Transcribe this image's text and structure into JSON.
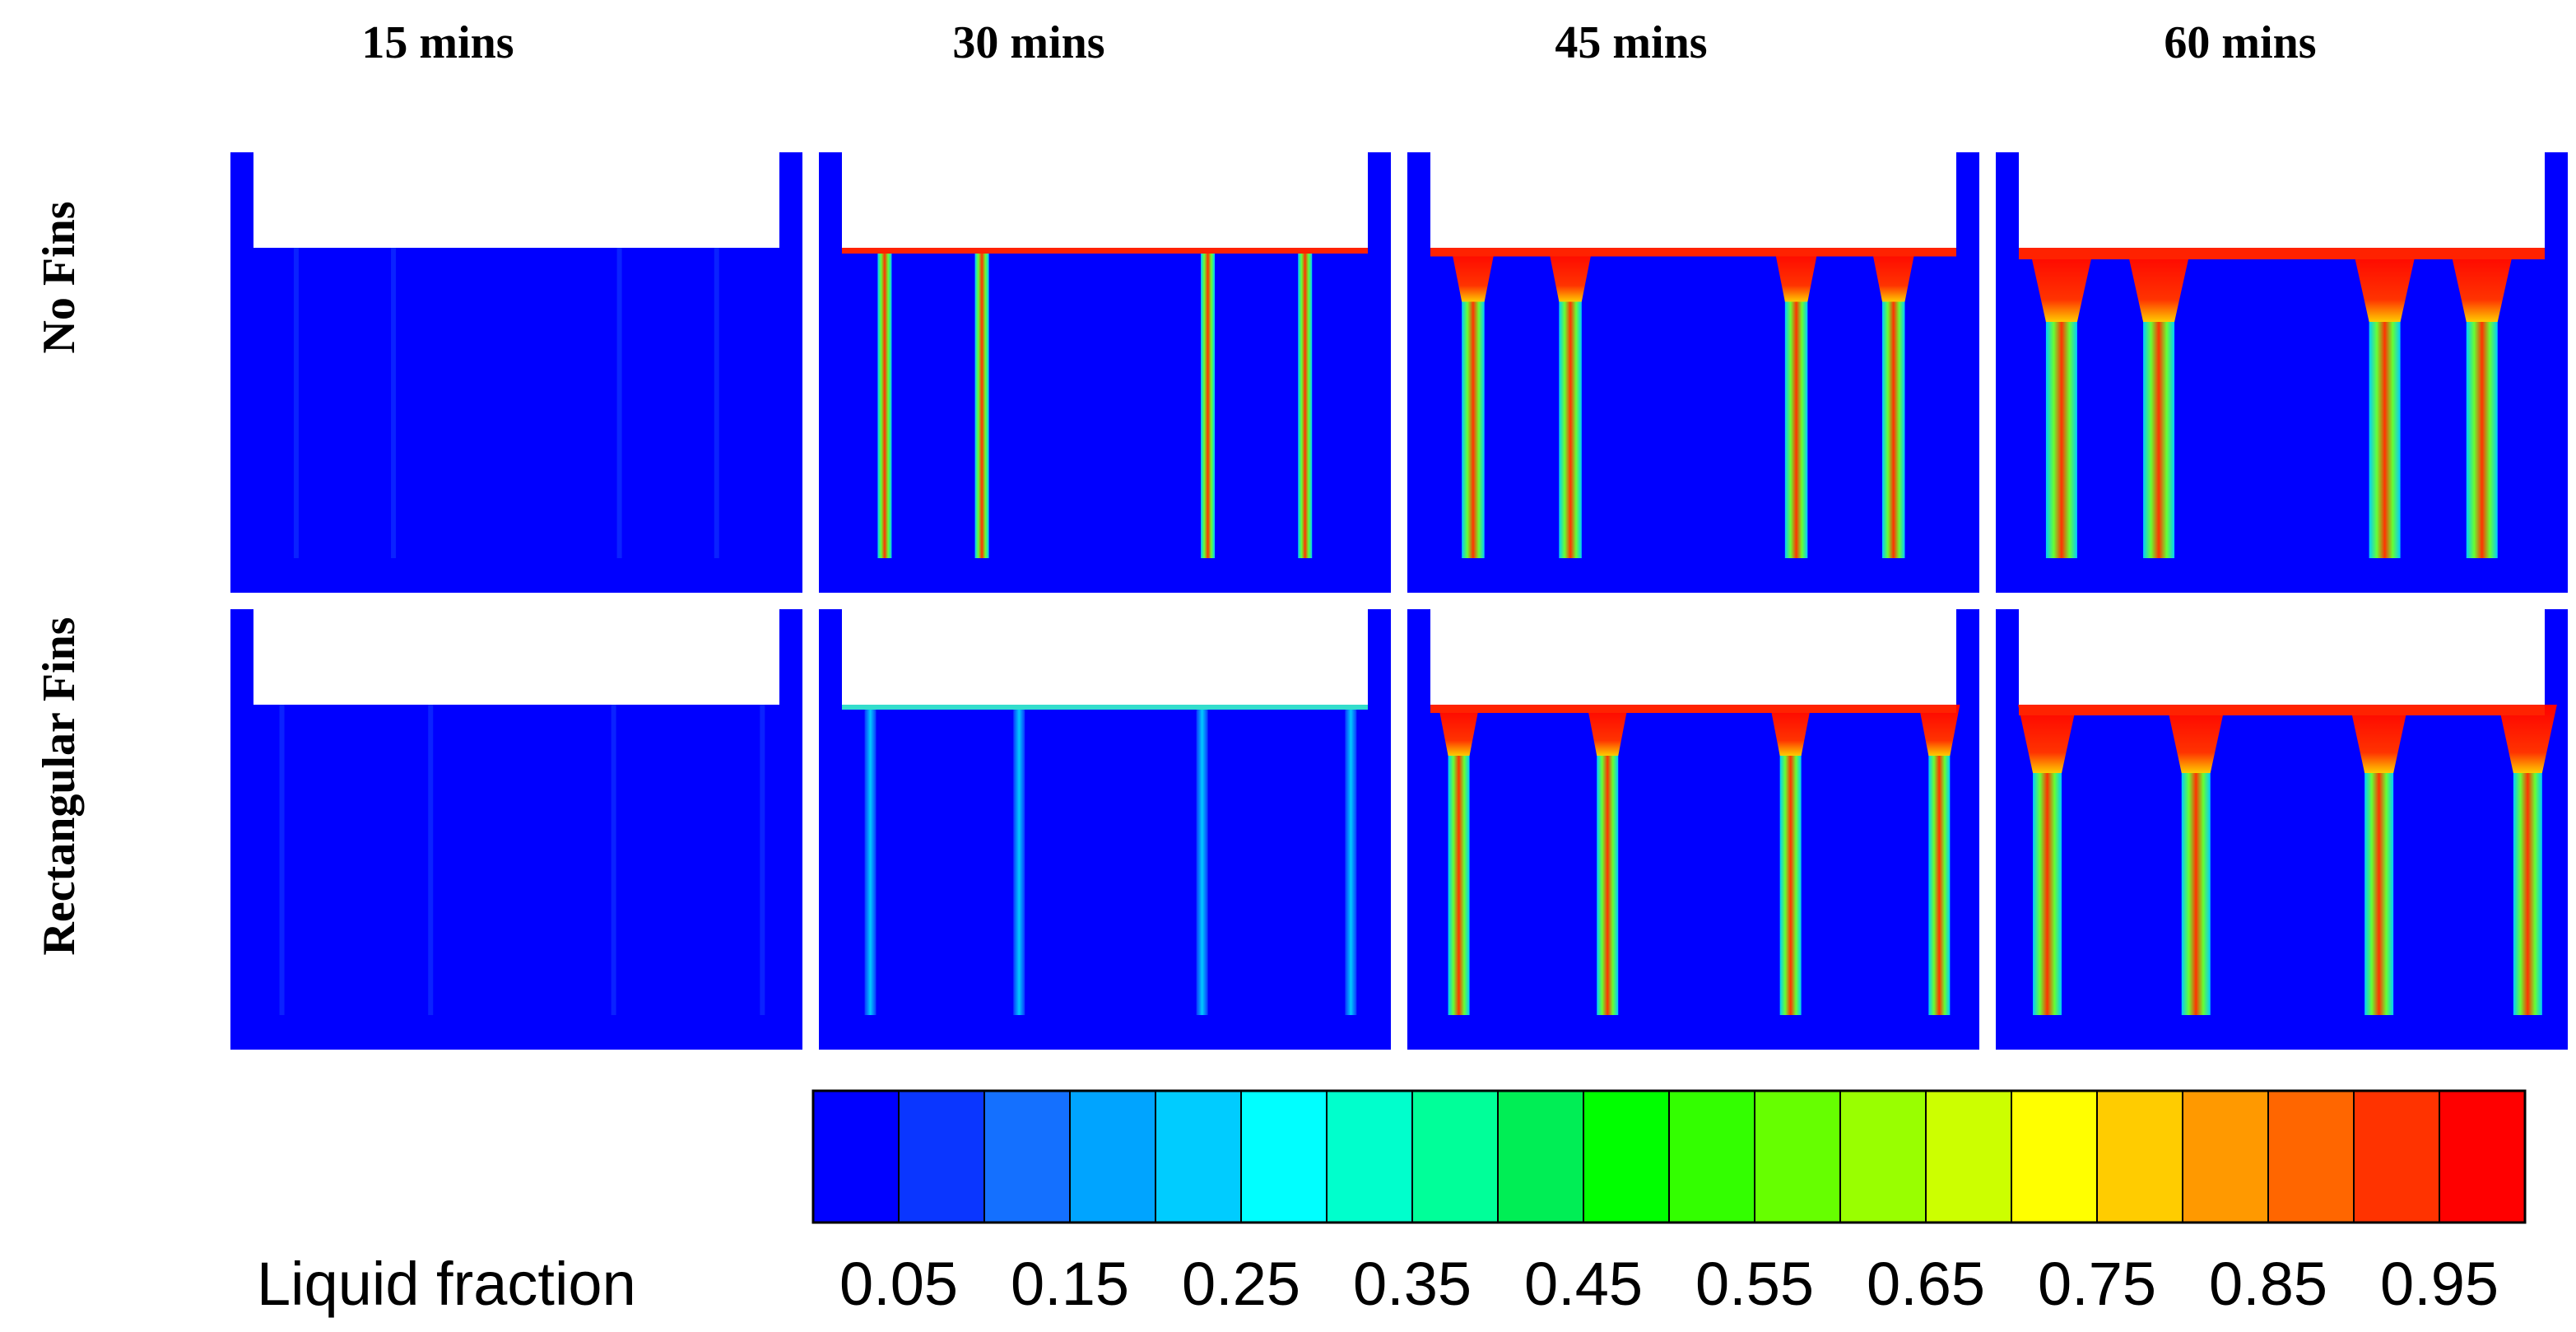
{
  "figure": {
    "column_titles": [
      "15 mins",
      "30 mins",
      "45 mins",
      "60 mins"
    ],
    "row_titles": [
      "No Fins",
      "Rectangular Fins"
    ],
    "panel_background_color": "#0000FF"
  },
  "legend": {
    "title": "Liquid fraction",
    "tick_labels": [
      "0.05",
      "0.15",
      "0.25",
      "0.35",
      "0.45",
      "0.55",
      "0.65",
      "0.75",
      "0.85",
      "0.95"
    ],
    "colors": [
      "#0000FF",
      "#0A36FF",
      "#1470FF",
      "#00A4FF",
      "#00CCFF",
      "#00FFFF",
      "#00FFCC",
      "#00FF99",
      "#00EE55",
      "#00FF00",
      "#33FF00",
      "#66FF00",
      "#99FF00",
      "#CCFF00",
      "#FFFF00",
      "#FFCC00",
      "#FF9900",
      "#FF6600",
      "#FF3300",
      "#FF0000"
    ]
  },
  "panels": [
    {
      "row": 0,
      "col": 0,
      "melt_level": 0.0
    },
    {
      "row": 0,
      "col": 1,
      "melt_level": 0.3
    },
    {
      "row": 0,
      "col": 2,
      "melt_level": 0.65
    },
    {
      "row": 0,
      "col": 3,
      "melt_level": 1.0
    },
    {
      "row": 1,
      "col": 0,
      "melt_level": 0.0
    },
    {
      "row": 1,
      "col": 1,
      "melt_level": 0.2
    },
    {
      "row": 1,
      "col": 2,
      "melt_level": 0.6
    },
    {
      "row": 1,
      "col": 3,
      "melt_level": 0.9
    }
  ]
}
